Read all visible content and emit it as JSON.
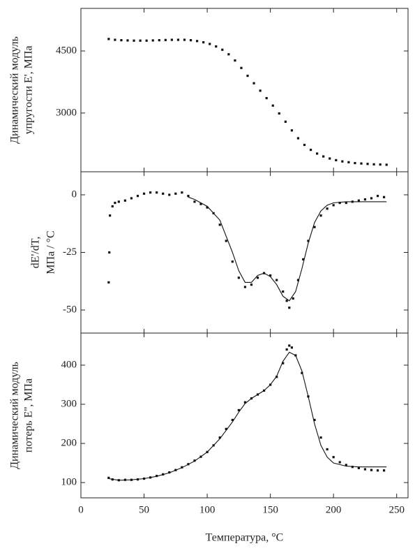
{
  "chart_data": [
    {
      "type": "scatter",
      "ylabel": [
        "Динамический модуль",
        "упругости E', МПа"
      ],
      "xlim": [
        0,
        259
      ],
      "ylim": [
        1580,
        5530
      ],
      "yticks": [
        4500,
        3000
      ],
      "series": [
        {
          "style": "markers",
          "color": "#111111",
          "x": [
            22,
            27,
            32,
            37,
            42,
            47,
            52,
            57,
            62,
            67,
            72,
            77,
            82,
            87,
            92,
            97,
            102,
            107,
            112,
            117,
            122,
            127,
            132,
            137,
            142,
            147,
            152,
            157,
            162,
            167,
            172,
            177,
            182,
            187,
            192,
            197,
            202,
            207,
            212,
            217,
            222,
            227,
            232,
            237,
            242
          ],
          "values": [
            4790,
            4770,
            4760,
            4755,
            4750,
            4750,
            4750,
            4755,
            4760,
            4765,
            4770,
            4770,
            4770,
            4760,
            4740,
            4710,
            4670,
            4610,
            4530,
            4420,
            4270,
            4090,
            3900,
            3720,
            3540,
            3360,
            3180,
            2990,
            2790,
            2580,
            2390,
            2230,
            2110,
            2020,
            1950,
            1900,
            1860,
            1830,
            1810,
            1790,
            1780,
            1770,
            1760,
            1755,
            1750
          ]
        }
      ]
    },
    {
      "type": "scatter",
      "ylabel": [
        "dE'/dT,",
        "МПа / °C"
      ],
      "xlim": [
        0,
        259
      ],
      "ylim": [
        -60,
        10
      ],
      "yticks": [
        0,
        -25,
        -50
      ],
      "series": [
        {
          "style": "markers",
          "color": "#111111",
          "x": [
            22,
            22.5,
            23,
            25,
            27,
            30,
            35,
            40,
            45,
            50,
            55,
            60,
            65,
            70,
            75,
            80,
            85,
            90,
            95,
            100,
            105,
            110,
            115,
            120,
            125,
            130,
            135,
            140,
            145,
            150,
            155,
            160,
            163,
            165,
            168,
            172,
            176,
            180,
            185,
            190,
            195,
            200,
            205,
            210,
            215,
            220,
            225,
            230,
            235,
            240
          ],
          "values": [
            -38,
            -25,
            -9,
            -5,
            -3.5,
            -3,
            -2.5,
            -1.5,
            -0.5,
            0.5,
            1,
            1,
            0.5,
            0,
            0.5,
            1,
            -0.5,
            -3,
            -4,
            -5.5,
            -8,
            -13,
            -20,
            -29,
            -36,
            -40,
            -39,
            -36,
            -34,
            -35,
            -37,
            -42,
            -46,
            -49,
            -45,
            -37,
            -28,
            -20,
            -14,
            -9,
            -6,
            -4.5,
            -3.5,
            -3.5,
            -3,
            -2.5,
            -2,
            -1.5,
            -0.5,
            -1
          ]
        },
        {
          "style": "line",
          "color": "#111111",
          "x": [
            85,
            90,
            100,
            110,
            120,
            125,
            130,
            135,
            140,
            145,
            150,
            155,
            160,
            165,
            170,
            175,
            180,
            185,
            190,
            195,
            200,
            210,
            220,
            230,
            242
          ],
          "values": [
            -1,
            -2,
            -5,
            -11,
            -25,
            -33,
            -38,
            -38,
            -35,
            -34,
            -35.5,
            -39,
            -44,
            -46,
            -42,
            -32,
            -21,
            -12,
            -7,
            -4.5,
            -3.5,
            -3,
            -3,
            -3,
            -3
          ]
        }
      ]
    },
    {
      "type": "scatter",
      "ylabel": [
        "Динамический модуль",
        "потерь E'', МПа"
      ],
      "xlabel": "Температура, °C",
      "xlim": [
        0,
        259
      ],
      "xticks": [
        0,
        50,
        100,
        150,
        200,
        250
      ],
      "ylim": [
        61,
        482
      ],
      "yticks": [
        100,
        200,
        300,
        400
      ],
      "series": [
        {
          "style": "markers",
          "color": "#111111",
          "x": [
            22,
            25,
            30,
            35,
            40,
            45,
            50,
            55,
            60,
            65,
            70,
            75,
            80,
            85,
            90,
            95,
            100,
            105,
            110,
            115,
            120,
            125,
            130,
            135,
            140,
            145,
            150,
            155,
            160,
            163,
            165,
            167,
            170,
            175,
            180,
            185,
            190,
            195,
            200,
            205,
            210,
            215,
            220,
            225,
            230,
            235,
            240
          ],
          "values": [
            112,
            108,
            106,
            107,
            107,
            108,
            110,
            113,
            117,
            121,
            126,
            132,
            139,
            147,
            156,
            166,
            178,
            195,
            215,
            237,
            260,
            285,
            305,
            315,
            325,
            335,
            350,
            370,
            405,
            440,
            450,
            445,
            425,
            380,
            320,
            260,
            215,
            185,
            165,
            152,
            145,
            140,
            137,
            134,
            132,
            131,
            131
          ]
        },
        {
          "style": "line",
          "color": "#111111",
          "x": [
            22,
            30,
            40,
            50,
            60,
            70,
            80,
            90,
            100,
            110,
            120,
            125,
            130,
            135,
            140,
            145,
            150,
            155,
            160,
            165,
            170,
            175,
            180,
            185,
            190,
            195,
            200,
            210,
            220,
            230,
            242
          ],
          "values": [
            110,
            106,
            107,
            110,
            116,
            125,
            138,
            155,
            178,
            212,
            255,
            280,
            302,
            315,
            325,
            335,
            350,
            372,
            410,
            433,
            425,
            385,
            320,
            250,
            195,
            165,
            150,
            142,
            140,
            140,
            140
          ]
        }
      ]
    }
  ]
}
